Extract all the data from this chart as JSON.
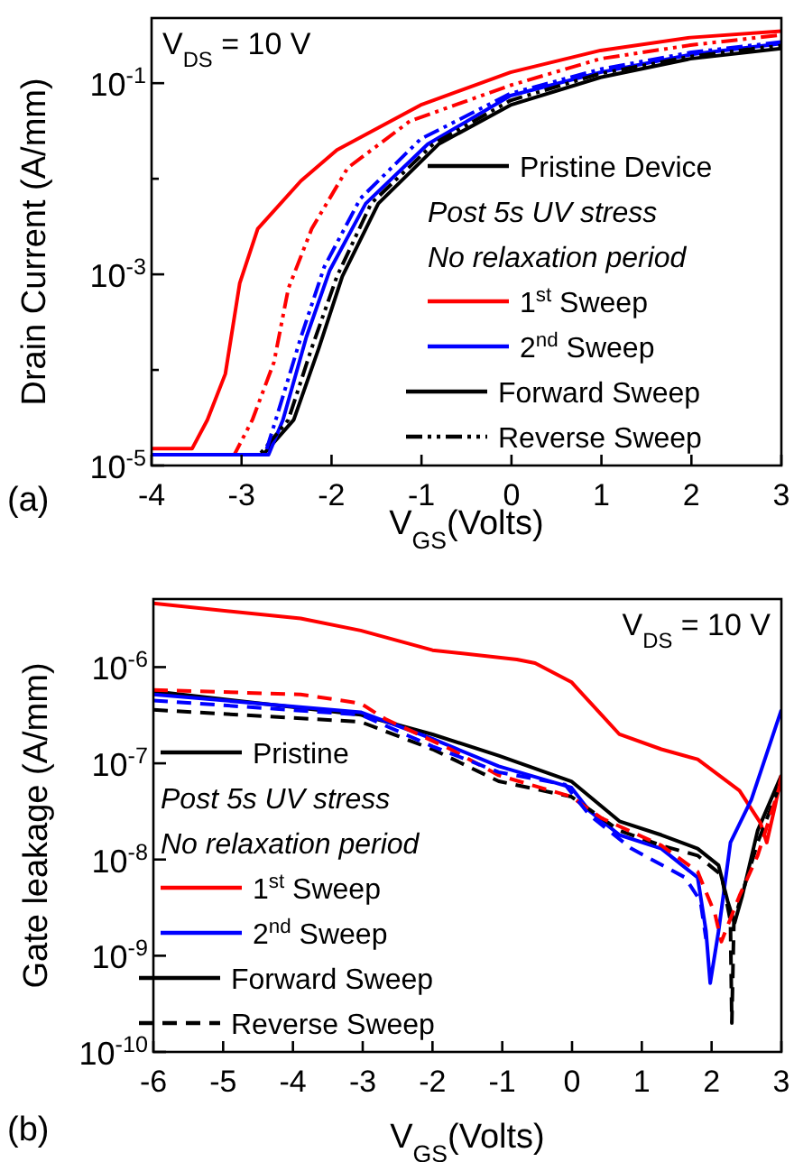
{
  "chart_data": [
    {
      "type": "line",
      "xlabel": "V$_{GS}$(Volts)",
      "ylabel": "Drain Current (A/mm)",
      "log": "y",
      "xlim": [
        -4,
        3
      ],
      "ylim": [
        1e-05,
        0.48
      ],
      "xticks": [
        -4,
        -3,
        -2,
        -1,
        0,
        1,
        2,
        3
      ],
      "yticks": [
        {
          "value": 1e-05,
          "label": "10$^{-5}$"
        },
        {
          "value": 0.0001,
          "label": null
        },
        {
          "value": 0.001,
          "label": "10$^{-3}$"
        },
        {
          "value": 0.01,
          "label": null
        },
        {
          "value": 0.1,
          "label": "10$^{-1}$"
        }
      ],
      "legend": "bottom right",
      "grid": false,
      "annotations": [
        "V$_{DS}$ = 10 V",
        "(a)",
        "Post 5s UV stress",
        "No relaxation period",
        "Forward Sweep",
        "Reverse Sweep"
      ],
      "series": [
        {
          "name": "Pristine Device",
          "color": "#000000",
          "line_style": "solid",
          "x": [
            -4,
            -2.76,
            -2.42,
            -2.14,
            -1.88,
            -1.48,
            -0.81,
            -0.01,
            0.99,
            1.99,
            3
          ],
          "values": [
            1.3e-05,
            1.3e-05,
            3e-05,
            0.00017,
            0.00095,
            0.0055,
            0.023,
            0.059,
            0.115,
            0.18,
            0.23
          ]
        },
        {
          "name": "1$^{st}$ Sweep",
          "color": "#ff0000",
          "line_style": "solid",
          "x": [
            -4,
            -3.55,
            -3.38,
            -3.18,
            -3.02,
            -2.82,
            -2.34,
            -1.94,
            -1.01,
            -0.01,
            0.99,
            1.99,
            3
          ],
          "values": [
            1.5e-05,
            1.5e-05,
            3e-05,
            9.1e-05,
            0.00081,
            0.003,
            0.0095,
            0.02,
            0.059,
            0.13,
            0.22,
            0.3,
            0.35
          ]
        },
        {
          "name": "2$^{nd}$ Sweep",
          "color": "#0000ff",
          "line_style": "solid",
          "x": [
            -4,
            -2.7,
            -2.54,
            -2.28,
            -2.02,
            -1.62,
            -0.93,
            -0.01,
            0.99,
            2,
            3
          ],
          "values": [
            1.3e-05,
            1.3e-05,
            3e-05,
            0.00022,
            0.0011,
            0.0055,
            0.023,
            0.074,
            0.13,
            0.2,
            0.26
          ]
        },
        {
          "color": "#000000",
          "line_style": "dashdot",
          "x": [
            -4,
            -2.8,
            -2.48,
            -2.22,
            -1.94,
            -1.56,
            -0.87,
            -0.01,
            0.99,
            1.99,
            3
          ],
          "values": [
            1.3e-05,
            1.3e-05,
            3e-05,
            0.00017,
            0.00095,
            0.0055,
            0.023,
            0.066,
            0.126,
            0.19,
            0.25
          ]
        },
        {
          "color": "#ff0000",
          "line_style": "dashdot",
          "x": [
            -4,
            -3.08,
            -2.88,
            -2.64,
            -2.48,
            -2.22,
            -1.82,
            -1.13,
            -0.01,
            0.99,
            1.99,
            3
          ],
          "values": [
            1.3e-05,
            1.3e-05,
            3e-05,
            0.00012,
            0.00071,
            0.003,
            0.013,
            0.04,
            0.095,
            0.18,
            0.25,
            0.32
          ]
        },
        {
          "color": "#0000ff",
          "line_style": "dashdot",
          "x": [
            -4,
            -2.74,
            -2.62,
            -2.34,
            -2.08,
            -1.68,
            -1.01,
            -0.01,
            0.99,
            2,
            3
          ],
          "values": [
            1.3e-05,
            1.3e-05,
            3e-05,
            0.00022,
            0.0012,
            0.0062,
            0.026,
            0.078,
            0.14,
            0.21,
            0.27
          ]
        }
      ]
    },
    {
      "type": "line",
      "xlabel": "V$_{GS}$(Volts)",
      "ylabel": "Gate leakage (A/mm)",
      "log": "y",
      "xlim": [
        -6,
        3
      ],
      "ylim": [
        1e-10,
        5.1e-06
      ],
      "xticks": [
        -6,
        -5,
        -4,
        -3,
        -2,
        -1,
        0,
        1,
        2,
        3
      ],
      "yticks": [
        {
          "value": 1e-10,
          "label": "10$^{-10}$"
        },
        {
          "value": 1e-09,
          "label": "10$^{-9}$"
        },
        {
          "value": 1e-08,
          "label": "10$^{-8}$"
        },
        {
          "value": 1e-07,
          "label": "10$^{-7}$"
        },
        {
          "value": 1e-06,
          "label": "10$^{-6}$"
        }
      ],
      "legend": "bottom left",
      "grid": false,
      "annotations": [
        "V$_{DS}$ = 10 V",
        "(b)",
        "Post 5s UV stress",
        "No relaxation period",
        "Forward Sweep",
        "Reverse Sweep"
      ],
      "series": [
        {
          "name": "Pristine",
          "color": "#000000",
          "line_style": "solid",
          "x": [
            -6,
            -3.03,
            -2,
            -1.05,
            -0.01,
            0.68,
            1.28,
            1.8,
            2.1,
            2.23,
            2.33,
            2.44,
            2.66,
            3
          ],
          "values": [
            5.6e-07,
            3.2e-07,
            2e-07,
            1.2e-07,
            6.5e-08,
            2.5e-08,
            1.8e-08,
            1.3e-08,
            8.7e-09,
            3.7e-09,
            2.2e-09,
            4.2e-09,
            2e-08,
            7.5e-08
          ]
        },
        {
          "name": "1$^{st}$ Sweep",
          "color": "#ff0000",
          "line_style": "solid",
          "x": [
            -6,
            -3.89,
            -3.03,
            -2,
            -0.79,
            -0.53,
            -0.01,
            0.42,
            0.68,
            1.28,
            1.8,
            2.4,
            2.7,
            2.79,
            2.91,
            3
          ],
          "values": [
            4.6e-06,
            3.2e-06,
            2.4e-06,
            1.5e-06,
            1.2e-06,
            1.1e-06,
            7e-07,
            3.2e-07,
            2e-07,
            1.4e-07,
            1.1e-07,
            5.2e-08,
            2.4e-08,
            1.5e-08,
            3.6e-08,
            7.5e-08
          ]
        },
        {
          "name": "2$^{nd}$ Sweep",
          "color": "#0000ff",
          "line_style": "solid",
          "x": [
            -6,
            -3.03,
            -2,
            -1.05,
            -0.01,
            0.25,
            0.68,
            1.28,
            1.8,
            1.92,
            1.98,
            2.1,
            2.27,
            2.57,
            3
          ],
          "values": [
            5.2e-07,
            3.4e-07,
            1.8e-07,
            9.3e-08,
            5.6e-08,
            3.2e-08,
            1.8e-08,
            1.3e-08,
            6.5e-09,
            1.8e-09,
            5.2e-10,
            1.8e-09,
            1.5e-08,
            4.2e-08,
            3.6e-07
          ]
        },
        {
          "color": "#000000",
          "line_style": "dashed",
          "x": [
            -6,
            -3.03,
            -2,
            -1.05,
            -0.01,
            0.68,
            1.28,
            1.8,
            2.14,
            2.27,
            2.29,
            2.32,
            2.66,
            3
          ],
          "values": [
            3.6e-07,
            2.7e-07,
            1.4e-07,
            6.5e-08,
            4.5e-08,
            2e-08,
            1.4e-08,
            1.1e-08,
            6.9e-09,
            2.3e-09,
            2e-10,
            2.3e-09,
            1.5e-08,
            6.5e-08
          ]
        },
        {
          "color": "#ff0000",
          "line_style": "dashed",
          "x": [
            -6,
            -3.89,
            -3.03,
            -2.68,
            -1.74,
            -1.05,
            -0.01,
            0.42,
            1.28,
            1.8,
            2.05,
            2.14,
            2.4,
            2.66,
            3
          ],
          "values": [
            5.8e-07,
            5.2e-07,
            4.2e-07,
            2.9e-07,
            1.4e-07,
            7.5e-08,
            4.5e-08,
            2.7e-08,
            1.4e-08,
            7.5e-09,
            2.7e-09,
            1.4e-09,
            4.2e-09,
            1.1e-08,
            6.5e-08
          ]
        },
        {
          "color": "#0000ff",
          "line_style": "dashed",
          "x": [
            -6,
            -3.03,
            -2,
            -1.05,
            -0.1,
            0.25,
            0.85,
            1.62,
            1.84,
            1.92
          ],
          "values": [
            4.5e-07,
            3.2e-07,
            1.5e-07,
            8.1e-08,
            6e-08,
            2.9e-08,
            1.3e-08,
            6.5e-09,
            3.7e-09,
            1.5e-09
          ]
        }
      ]
    }
  ]
}
